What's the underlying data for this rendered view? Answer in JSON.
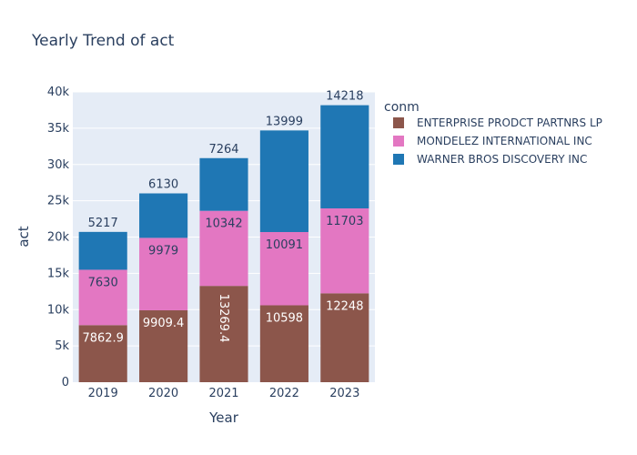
{
  "chart_data": {
    "type": "bar",
    "barmode": "stack",
    "title": "Yearly Trend of act",
    "xlabel": "Year",
    "ylabel": "act",
    "categories": [
      "2019",
      "2020",
      "2021",
      "2022",
      "2023"
    ],
    "ylim": [
      0,
      40000
    ],
    "yticks": [
      {
        "value": 0,
        "label": "0"
      },
      {
        "value": 5000,
        "label": "5k"
      },
      {
        "value": 10000,
        "label": "10k"
      },
      {
        "value": 15000,
        "label": "15k"
      },
      {
        "value": 20000,
        "label": "20k"
      },
      {
        "value": 25000,
        "label": "25k"
      },
      {
        "value": 30000,
        "label": "30k"
      },
      {
        "value": 35000,
        "label": "35k"
      },
      {
        "value": 40000,
        "label": "40k"
      }
    ],
    "legend_title": "conm",
    "legend_position": "top-right",
    "series": [
      {
        "name": "ENTERPRISE PRODCT PARTNRS LP",
        "color": "#8c564b",
        "values": [
          7862.9,
          9909.4,
          13269.4,
          10598,
          12248
        ],
        "labels": [
          "7862.9",
          "9909.4",
          "13269.4",
          "10598",
          "12248"
        ]
      },
      {
        "name": "MONDELEZ INTERNATIONAL INC",
        "color": "#e377c2",
        "values": [
          7630,
          9979,
          10342,
          10091,
          11703
        ],
        "labels": [
          "7630",
          "9979",
          "10342",
          "10091",
          "11703"
        ]
      },
      {
        "name": "WARNER BROS DISCOVERY INC",
        "color": "#1f77b4",
        "values": [
          5217,
          6130,
          7264,
          13999,
          14218
        ],
        "labels": [
          "5217",
          "6130",
          "7264",
          "13999",
          "14218"
        ]
      }
    ]
  }
}
